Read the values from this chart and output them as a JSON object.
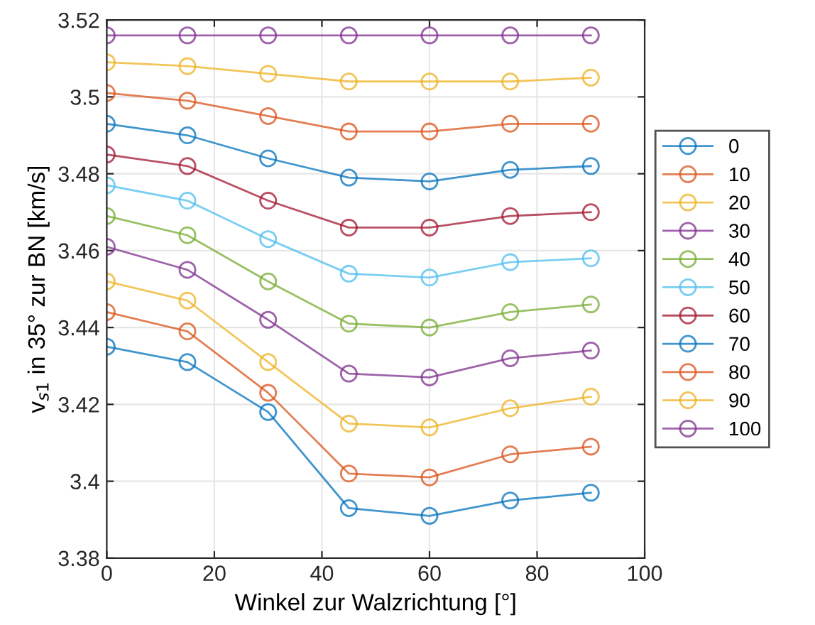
{
  "chart_data": {
    "type": "line",
    "xlabel": "Winkel zur Walzrichtung [°]",
    "ylabel": "v$_{s1}$ in 35° zur BN [km/s]",
    "x": [
      0,
      15,
      30,
      45,
      60,
      75,
      90
    ],
    "xlim": [
      0,
      100
    ],
    "xticks": [
      0,
      20,
      40,
      60,
      80,
      100
    ],
    "ylim": [
      3.38,
      3.52
    ],
    "yticks": [
      3.38,
      3.4,
      3.42,
      3.44,
      3.46,
      3.48,
      3.5,
      3.52
    ],
    "grid": true,
    "legend": "right",
    "marker": "circle",
    "line_style": "solid",
    "series": [
      {
        "name": "0",
        "color": "#0072bd",
        "values": [
          3.435,
          3.431,
          3.418,
          3.393,
          3.391,
          3.395,
          3.397
        ]
      },
      {
        "name": "10",
        "color": "#d95319",
        "values": [
          3.444,
          3.439,
          3.423,
          3.402,
          3.401,
          3.407,
          3.409
        ]
      },
      {
        "name": "20",
        "color": "#edb120",
        "values": [
          3.452,
          3.447,
          3.431,
          3.415,
          3.414,
          3.419,
          3.422
        ]
      },
      {
        "name": "30",
        "color": "#7e2f8e",
        "values": [
          3.461,
          3.455,
          3.442,
          3.428,
          3.427,
          3.432,
          3.434
        ]
      },
      {
        "name": "40",
        "color": "#77ac30",
        "values": [
          3.469,
          3.464,
          3.452,
          3.441,
          3.44,
          3.444,
          3.446
        ]
      },
      {
        "name": "50",
        "color": "#4dbeee",
        "values": [
          3.477,
          3.473,
          3.463,
          3.454,
          3.453,
          3.457,
          3.458
        ]
      },
      {
        "name": "60",
        "color": "#a2142f",
        "values": [
          3.485,
          3.482,
          3.473,
          3.466,
          3.466,
          3.469,
          3.47
        ]
      },
      {
        "name": "70",
        "color": "#0072bd",
        "values": [
          3.493,
          3.49,
          3.484,
          3.479,
          3.478,
          3.481,
          3.482
        ]
      },
      {
        "name": "80",
        "color": "#d95319",
        "values": [
          3.501,
          3.499,
          3.495,
          3.491,
          3.491,
          3.493,
          3.493
        ]
      },
      {
        "name": "90",
        "color": "#edb120",
        "values": [
          3.509,
          3.508,
          3.506,
          3.504,
          3.504,
          3.504,
          3.505
        ]
      },
      {
        "name": "100",
        "color": "#7e2f8e",
        "values": [
          3.516,
          3.516,
          3.516,
          3.516,
          3.516,
          3.516,
          3.516
        ]
      }
    ]
  }
}
